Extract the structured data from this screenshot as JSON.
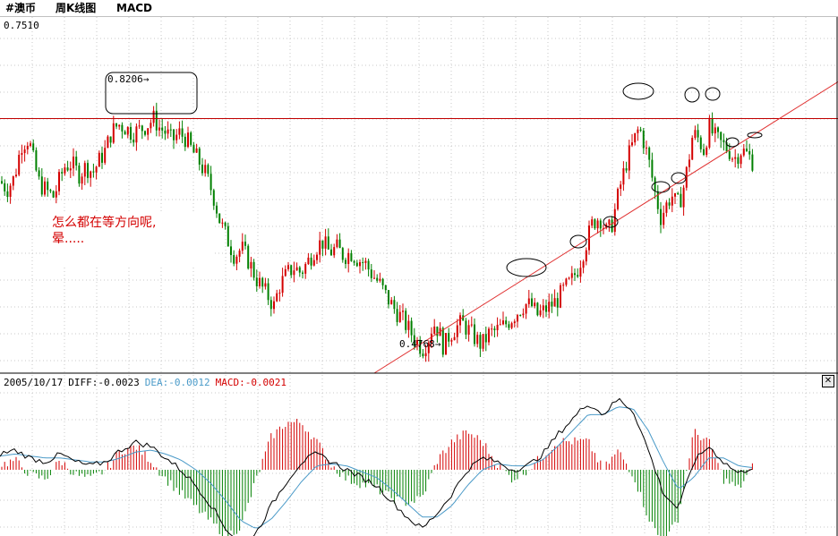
{
  "titlebar": {
    "symbol": "#澳币",
    "period": "周K线图",
    "indicator": "MACD"
  },
  "price_axis_top_label": "0.7510",
  "note": {
    "line1": "怎么都在等方向呢,",
    "line2": "晕....."
  },
  "macd_header": {
    "date": "2005/10/17",
    "diff_label": "DIFF:-0.0023",
    "dea_label": "DEA:-0.0012",
    "macd_label": "MACD:-0.0021"
  },
  "colors": {
    "up_candle": "#d40000",
    "down_candle": "#008000",
    "diff_line": "#000000",
    "dea_line": "#4a9ac8",
    "resistance_line": "#c00000",
    "trend_line": "#e03030",
    "grid": "#c8c8c8"
  },
  "close_icon": "close-icon",
  "chart_data": [
    {
      "type": "candlestick",
      "title": "",
      "ylim": [
        0.44,
        0.751
      ],
      "annotations": [
        {
          "label": "0.8206",
          "value": 0.8206
        },
        {
          "label": "0.4768",
          "value": 0.4768
        }
      ],
      "close_path": [
        [
          0,
          0.612
        ],
        [
          8,
          0.605
        ],
        [
          16,
          0.615
        ],
        [
          24,
          0.645
        ],
        [
          32,
          0.65
        ],
        [
          38,
          0.628
        ],
        [
          44,
          0.61
        ],
        [
          52,
          0.603
        ],
        [
          60,
          0.598
        ],
        [
          66,
          0.612
        ],
        [
          72,
          0.625
        ],
        [
          80,
          0.628
        ],
        [
          88,
          0.618
        ],
        [
          96,
          0.625
        ],
        [
          104,
          0.62
        ],
        [
          112,
          0.632
        ],
        [
          118,
          0.64
        ],
        [
          124,
          0.655
        ],
        [
          132,
          0.663
        ],
        [
          140,
          0.66
        ],
        [
          148,
          0.655
        ],
        [
          156,
          0.658
        ],
        [
          164,
          0.662
        ],
        [
          172,
          0.668
        ],
        [
          178,
          0.66
        ],
        [
          186,
          0.655
        ],
        [
          192,
          0.648
        ],
        [
          200,
          0.655
        ],
        [
          208,
          0.65
        ],
        [
          214,
          0.64
        ],
        [
          222,
          0.63
        ],
        [
          230,
          0.618
        ],
        [
          238,
          0.6
        ],
        [
          246,
          0.575
        ],
        [
          254,
          0.56
        ],
        [
          262,
          0.545
        ],
        [
          270,
          0.552
        ],
        [
          278,
          0.54
        ],
        [
          286,
          0.525
        ],
        [
          294,
          0.515
        ],
        [
          300,
          0.508
        ],
        [
          306,
          0.5
        ],
        [
          312,
          0.518
        ],
        [
          320,
          0.528
        ],
        [
          328,
          0.535
        ],
        [
          336,
          0.53
        ],
        [
          344,
          0.54
        ],
        [
          352,
          0.552
        ],
        [
          360,
          0.558
        ],
        [
          368,
          0.548
        ],
        [
          376,
          0.552
        ],
        [
          384,
          0.545
        ],
        [
          392,
          0.548
        ],
        [
          400,
          0.542
        ],
        [
          408,
          0.538
        ],
        [
          416,
          0.528
        ],
        [
          424,
          0.52
        ],
        [
          432,
          0.508
        ],
        [
          440,
          0.498
        ],
        [
          448,
          0.49
        ],
        [
          456,
          0.48
        ],
        [
          464,
          0.47
        ],
        [
          472,
          0.462
        ],
        [
          478,
          0.47
        ],
        [
          484,
          0.485
        ],
        [
          490,
          0.478
        ],
        [
          496,
          0.462
        ],
        [
          500,
          0.472
        ],
        [
          508,
          0.48
        ],
        [
          516,
          0.485
        ],
        [
          524,
          0.478
        ],
        [
          532,
          0.47
        ],
        [
          538,
          0.465
        ],
        [
          546,
          0.475
        ],
        [
          554,
          0.478
        ],
        [
          562,
          0.482
        ],
        [
          570,
          0.488
        ],
        [
          578,
          0.495
        ],
        [
          586,
          0.502
        ],
        [
          594,
          0.5
        ],
        [
          600,
          0.492
        ],
        [
          606,
          0.495
        ],
        [
          614,
          0.5
        ],
        [
          622,
          0.505
        ],
        [
          630,
          0.515
        ],
        [
          638,
          0.522
        ],
        [
          646,
          0.535
        ],
        [
          654,
          0.555
        ],
        [
          662,
          0.575
        ],
        [
          670,
          0.58
        ],
        [
          678,
          0.565
        ],
        [
          684,
          0.575
        ],
        [
          692,
          0.605
        ],
        [
          700,
          0.63
        ],
        [
          708,
          0.648
        ],
        [
          714,
          0.66
        ],
        [
          720,
          0.645
        ],
        [
          726,
          0.625
        ],
        [
          732,
          0.6
        ],
        [
          738,
          0.58
        ],
        [
          744,
          0.59
        ],
        [
          750,
          0.6
        ],
        [
          756,
          0.59
        ],
        [
          762,
          0.6
        ],
        [
          768,
          0.625
        ],
        [
          774,
          0.655
        ],
        [
          780,
          0.65
        ],
        [
          786,
          0.64
        ],
        [
          792,
          0.66
        ],
        [
          798,
          0.652
        ],
        [
          806,
          0.645
        ],
        [
          814,
          0.64
        ],
        [
          820,
          0.632
        ],
        [
          828,
          0.64
        ],
        [
          836,
          0.635
        ],
        [
          842,
          0.628
        ]
      ],
      "resistance_level": 0.668,
      "trend_line": {
        "from": [
          418,
          0.44
        ],
        "to": [
          936,
          0.701
        ]
      }
    },
    {
      "type": "line",
      "title": "MACD",
      "series": [
        {
          "name": "DIFF",
          "values": [
            0.008,
            0.01,
            0.006,
            0.004,
            0.008,
            0.004,
            0.002,
            0.004,
            0.01,
            0.014,
            0.012,
            0.006,
            0.0,
            -0.008,
            -0.018,
            -0.03,
            -0.038,
            -0.032,
            -0.018,
            -0.006,
            0.004,
            0.008,
            0.004,
            0.0,
            -0.004,
            -0.008,
            -0.016,
            -0.024,
            -0.03,
            -0.022,
            -0.012,
            0.0,
            0.006,
            0.004,
            0.0,
            0.002,
            0.008,
            0.018,
            0.026,
            0.034,
            0.028,
            0.036,
            0.03,
            0.01,
            -0.012,
            -0.02,
            0.004,
            0.012,
            0.004,
            -0.002,
            0.002
          ]
        },
        {
          "name": "DEA",
          "values": [
            0.007,
            0.008,
            0.007,
            0.006,
            0.006,
            0.005,
            0.004,
            0.004,
            0.006,
            0.009,
            0.01,
            0.008,
            0.005,
            0.0,
            -0.007,
            -0.016,
            -0.026,
            -0.03,
            -0.025,
            -0.016,
            -0.006,
            0.002,
            0.003,
            0.002,
            -0.001,
            -0.004,
            -0.01,
            -0.017,
            -0.024,
            -0.024,
            -0.018,
            -0.008,
            0.0,
            0.003,
            0.002,
            0.002,
            0.005,
            0.012,
            0.02,
            0.028,
            0.028,
            0.032,
            0.031,
            0.02,
            0.004,
            -0.01,
            -0.004,
            0.006,
            0.006,
            0.002,
            0.001
          ]
        }
      ]
    }
  ]
}
